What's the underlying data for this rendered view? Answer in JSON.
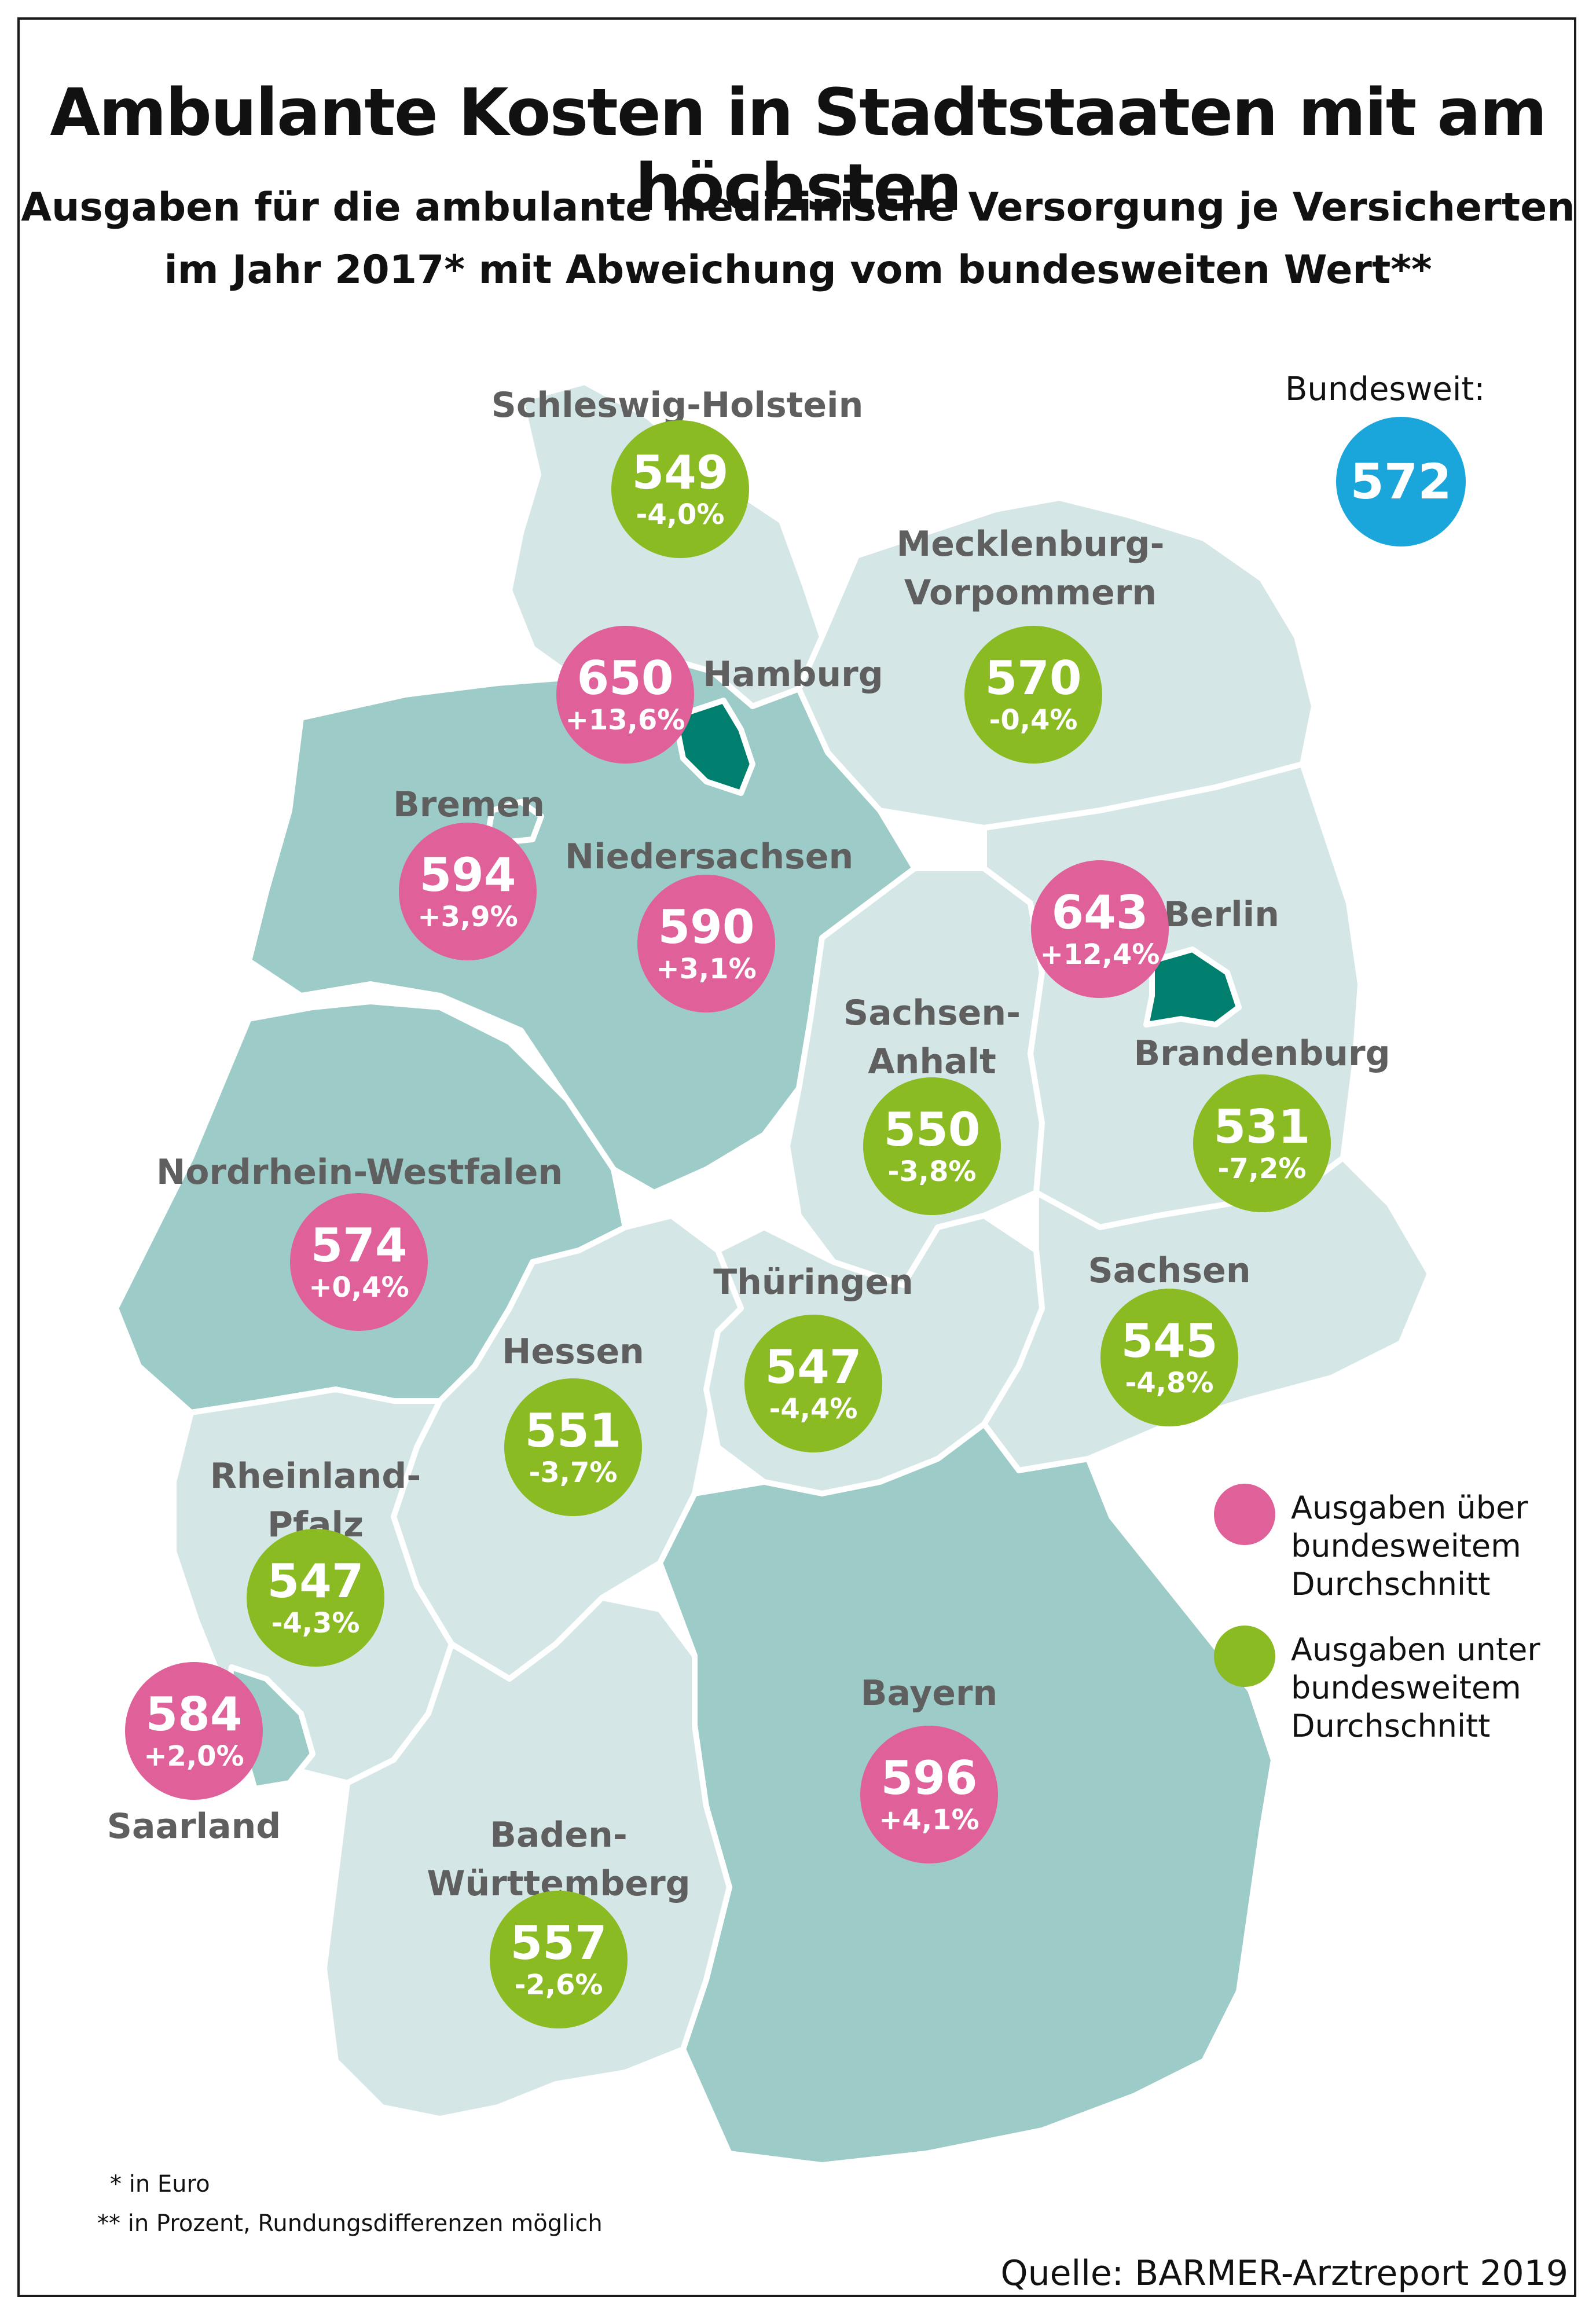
{
  "title": "Ambulante Kosten in Stadtstaaten mit am höchsten",
  "subtitle": {
    "line1": "Ausgaben für die ambulante medizinische Versorgung je Versicherten",
    "line2": "im Jahr 2017* mit Abweichung vom bundesweiten Wert**"
  },
  "national": {
    "label": "Bundesweit:",
    "value": "572",
    "color": "#1aa6db"
  },
  "colors": {
    "above": "#e0609a",
    "below": "#8abb22",
    "map_dark": "#9ccbc8",
    "map_light": "#d4e7e6",
    "city": "#007f6e",
    "border": "#ffffff"
  },
  "states": [
    {
      "id": "schleswig-holstein",
      "name": "Schleswig-Holstein",
      "value": "549",
      "deviation": "-4,0%",
      "status": "below"
    },
    {
      "id": "mecklenburg-vorpommern",
      "name": "Mecklenburg-Vorpommern",
      "name_lines": [
        "Mecklenburg-",
        "Vorpommern"
      ],
      "value": "570",
      "deviation": "-0,4%",
      "status": "below"
    },
    {
      "id": "hamburg",
      "name": "Hamburg",
      "value": "650",
      "deviation": "+13,6%",
      "status": "above"
    },
    {
      "id": "bremen",
      "name": "Bremen",
      "value": "594",
      "deviation": "+3,9%",
      "status": "above"
    },
    {
      "id": "niedersachsen",
      "name": "Niedersachsen",
      "value": "590",
      "deviation": "+3,1%",
      "status": "above"
    },
    {
      "id": "berlin",
      "name": "Berlin",
      "value": "643",
      "deviation": "+12,4%",
      "status": "above"
    },
    {
      "id": "sachsen-anhalt",
      "name": "Sachsen-Anhalt",
      "name_lines": [
        "Sachsen-",
        "Anhalt"
      ],
      "value": "550",
      "deviation": "-3,8%",
      "status": "below"
    },
    {
      "id": "brandenburg",
      "name": "Brandenburg",
      "value": "531",
      "deviation": "-7,2%",
      "status": "below"
    },
    {
      "id": "nordrhein-westfalen",
      "name": "Nordrhein-Westfalen",
      "value": "574",
      "deviation": "+0,4%",
      "status": "above"
    },
    {
      "id": "sachsen",
      "name": "Sachsen",
      "value": "545",
      "deviation": "-4,8%",
      "status": "below"
    },
    {
      "id": "thueringen",
      "name": "Thüringen",
      "value": "547",
      "deviation": "-4,4%",
      "status": "below"
    },
    {
      "id": "hessen",
      "name": "Hessen",
      "value": "551",
      "deviation": "-3,7%",
      "status": "below"
    },
    {
      "id": "rheinland-pfalz",
      "name": "Rheinland-Pfalz",
      "name_lines": [
        "Rheinland-",
        "Pfalz"
      ],
      "value": "547",
      "deviation": "-4,3%",
      "status": "below"
    },
    {
      "id": "saarland",
      "name": "Saarland",
      "value": "584",
      "deviation": "+2,0%",
      "status": "above"
    },
    {
      "id": "bayern",
      "name": "Bayern",
      "value": "596",
      "deviation": "+4,1%",
      "status": "above"
    },
    {
      "id": "baden-wuerttemberg",
      "name": "Baden-Württemberg",
      "name_lines": [
        "Baden-",
        "Württemberg"
      ],
      "value": "557",
      "deviation": "-2,6%",
      "status": "below"
    }
  ],
  "legend": {
    "above_lines": [
      "Ausgaben über",
      "bundesweitem",
      "Durchschnitt"
    ],
    "below_lines": [
      "Ausgaben unter",
      "bundesweitem",
      "Durchschnitt"
    ]
  },
  "footnotes": {
    "one": "* in Euro",
    "two": "** in Prozent, Rundungsdifferenzen möglich"
  },
  "source": "Quelle: BARMER-Arztreport 2019"
}
